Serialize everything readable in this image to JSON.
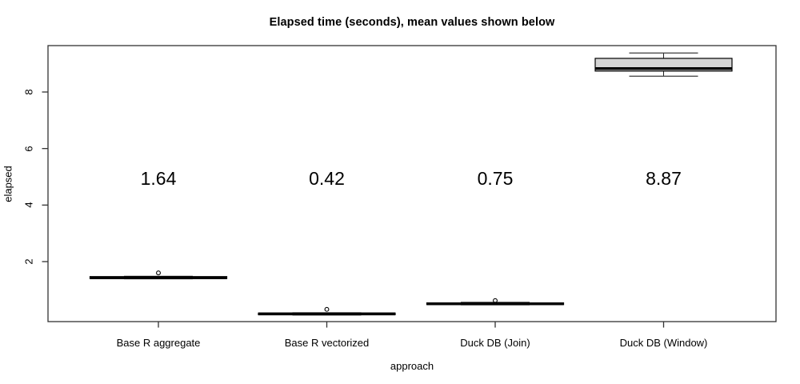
{
  "title": "Elapsed time (seconds), mean values shown below",
  "chart_data": {
    "type": "boxplot",
    "title": "Elapsed time (seconds), mean values shown below",
    "xlabel": "approach",
    "ylabel": "elapsed",
    "grid": false,
    "legend": "none",
    "ylim": [
      -0.1,
      9.85
    ],
    "y_ticks": [
      2,
      4,
      6,
      8
    ],
    "y_tick_labels": [
      "2",
      "4",
      "6",
      "8"
    ],
    "categories": [
      "Base R aggregate",
      "Base R vectorized",
      "Duck DB (Join)",
      "Duck DB (Window)"
    ],
    "means_shown": [
      "1.64",
      "0.42",
      "0.75",
      "8.87"
    ],
    "boxes": [
      {
        "category": "Base R aggregate",
        "mean_label": "1.64",
        "median": 1.43,
        "q1": 1.4,
        "q3": 1.47,
        "whisker_low": 1.39,
        "whisker_high": 1.48,
        "outliers": [
          1.6
        ]
      },
      {
        "category": "Base R vectorized",
        "mean_label": "0.42",
        "median": 0.15,
        "q1": 0.12,
        "q3": 0.18,
        "whisker_low": 0.11,
        "whisker_high": 0.19,
        "outliers": [
          0.31
        ]
      },
      {
        "category": "Duck DB (Join)",
        "mean_label": "0.75",
        "median": 0.51,
        "q1": 0.48,
        "q3": 0.54,
        "whisker_low": 0.47,
        "whisker_high": 0.56,
        "outliers": [
          0.62
        ]
      },
      {
        "category": "Duck DB (Window)",
        "mean_label": "8.87",
        "median": 8.83,
        "q1": 8.74,
        "q3": 9.19,
        "whisker_low": 8.56,
        "whisker_high": 9.38,
        "outliers": []
      }
    ],
    "colors": {
      "box_fill": "#d5d5d5",
      "line": "#000000",
      "frame": "#333333",
      "background": "#ffffff"
    }
  }
}
